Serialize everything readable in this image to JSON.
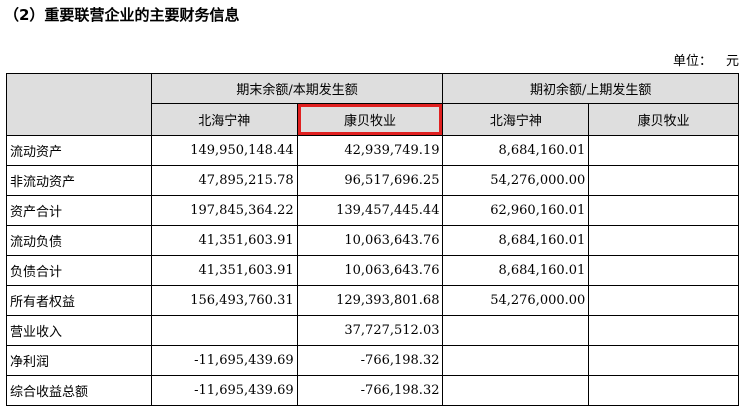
{
  "title": "（2）重要联营企业的主要财务信息",
  "unit": {
    "label": "单位：",
    "value": "元"
  },
  "table": {
    "group_headers": [
      "期末余额/本期发生额",
      "期初余额/上期发生额"
    ],
    "sub_headers": [
      "北海宁神",
      "康贝牧业",
      "北海宁神",
      "康贝牧业"
    ],
    "rows": [
      {
        "label": "流动资产",
        "values": [
          "149,950,148.44",
          "42,939,749.19",
          "8,684,160.01",
          ""
        ]
      },
      {
        "label": "非流动资产",
        "values": [
          "47,895,215.78",
          "96,517,696.25",
          "54,276,000.00",
          ""
        ]
      },
      {
        "label": "资产合计",
        "values": [
          "197,845,364.22",
          "139,457,445.44",
          "62,960,160.01",
          ""
        ]
      },
      {
        "label": "流动负债",
        "values": [
          "41,351,603.91",
          "10,063,643.76",
          "8,684,160.01",
          ""
        ]
      },
      {
        "label": "负债合计",
        "values": [
          "41,351,603.91",
          "10,063,643.76",
          "8,684,160.01",
          ""
        ]
      },
      {
        "label": "所有者权益",
        "values": [
          "156,493,760.31",
          "129,393,801.68",
          "54,276,000.00",
          ""
        ]
      },
      {
        "label": "营业收入",
        "values": [
          "",
          "37,727,512.03",
          "",
          ""
        ]
      },
      {
        "label": "净利润",
        "values": [
          "-11,695,439.69",
          "-766,198.32",
          "",
          ""
        ]
      },
      {
        "label": "综合收益总额",
        "values": [
          "-11,695,439.69",
          "-766,198.32",
          "",
          ""
        ]
      }
    ]
  },
  "highlight_color": "#e02020"
}
